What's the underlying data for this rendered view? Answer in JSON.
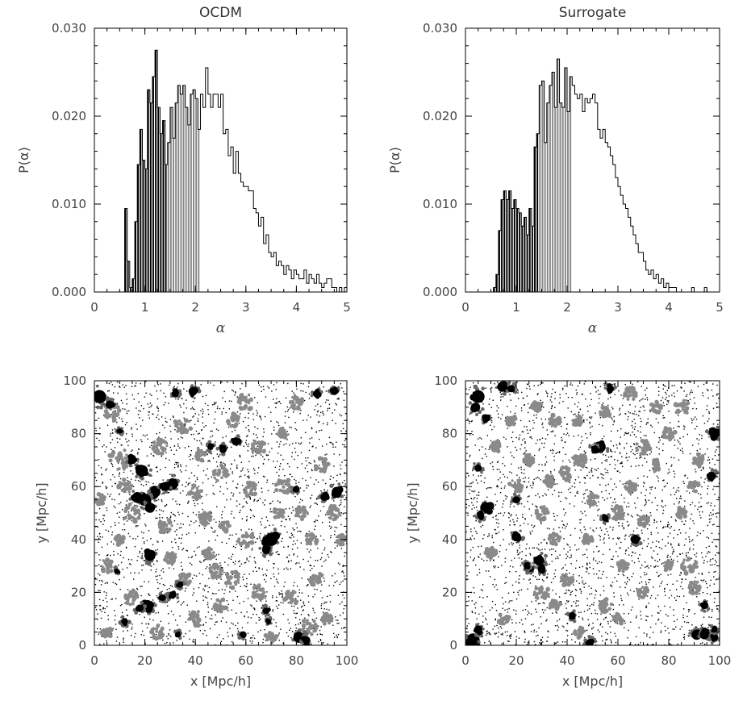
{
  "chart_data": [
    {
      "type": "bar",
      "title": "OCDM",
      "xlabel": "α",
      "ylabel": "P(α)",
      "xlim": [
        0,
        5
      ],
      "ylim": [
        0,
        0.03
      ],
      "xticks": [
        "0",
        "1",
        "2",
        "3",
        "4",
        "5"
      ],
      "yticks": [
        "0.000",
        "0.010",
        "0.020",
        "0.030"
      ],
      "bin_width": 0.05,
      "fill_ranges": [
        {
          "from": 0.55,
          "to": 1.45,
          "color": "#000000"
        },
        {
          "from": 1.45,
          "to": 2.1,
          "color": "#888888"
        }
      ],
      "x": [
        0.6,
        0.65,
        0.7,
        0.75,
        0.8,
        0.85,
        0.9,
        0.95,
        1.0,
        1.05,
        1.1,
        1.15,
        1.2,
        1.25,
        1.3,
        1.35,
        1.4,
        1.45,
        1.5,
        1.55,
        1.6,
        1.65,
        1.7,
        1.75,
        1.8,
        1.85,
        1.9,
        1.95,
        2.0,
        2.05,
        2.1,
        2.15,
        2.2,
        2.25,
        2.3,
        2.35,
        2.4,
        2.45,
        2.5,
        2.55,
        2.6,
        2.65,
        2.7,
        2.75,
        2.8,
        2.85,
        2.9,
        2.95,
        3.0,
        3.05,
        3.1,
        3.15,
        3.2,
        3.25,
        3.3,
        3.35,
        3.4,
        3.45,
        3.5,
        3.55,
        3.6,
        3.65,
        3.7,
        3.75,
        3.8,
        3.85,
        3.9,
        3.95,
        4.0,
        4.05,
        4.1,
        4.15,
        4.2,
        4.25,
        4.3,
        4.35,
        4.4,
        4.45,
        4.5,
        4.55,
        4.6,
        4.65,
        4.7,
        4.75,
        4.8,
        4.85,
        4.9,
        4.95
      ],
      "values": [
        0.0095,
        0.0035,
        0.0005,
        0.0015,
        0.008,
        0.0145,
        0.0185,
        0.015,
        0.014,
        0.023,
        0.0215,
        0.0245,
        0.0275,
        0.021,
        0.018,
        0.0195,
        0.0145,
        0.017,
        0.021,
        0.0175,
        0.0215,
        0.0235,
        0.0225,
        0.0235,
        0.021,
        0.019,
        0.0225,
        0.023,
        0.022,
        0.0185,
        0.0225,
        0.021,
        0.0255,
        0.0225,
        0.021,
        0.0225,
        0.0225,
        0.021,
        0.0225,
        0.018,
        0.0185,
        0.0155,
        0.0165,
        0.0135,
        0.016,
        0.0135,
        0.0125,
        0.012,
        0.012,
        0.0115,
        0.0115,
        0.0095,
        0.009,
        0.0075,
        0.0085,
        0.0055,
        0.0065,
        0.0045,
        0.004,
        0.0045,
        0.003,
        0.0035,
        0.003,
        0.002,
        0.003,
        0.0025,
        0.0015,
        0.0025,
        0.002,
        0.0015,
        0.0015,
        0.0025,
        0.001,
        0.002,
        0.0015,
        0.001,
        0.002,
        0.001,
        0.0005,
        0.001,
        0.0015,
        0.0015,
        0.0005,
        0.0005,
        0.0,
        0.0005,
        0.0,
        0.0005
      ]
    },
    {
      "type": "bar",
      "title": "Surrogate",
      "xlabel": "α",
      "ylabel": "P(α)",
      "xlim": [
        0,
        5
      ],
      "ylim": [
        0,
        0.03
      ],
      "xticks": [
        "0",
        "1",
        "2",
        "3",
        "4",
        "5"
      ],
      "yticks": [
        "0.000",
        "0.010",
        "0.020",
        "0.030"
      ],
      "bin_width": 0.05,
      "fill_ranges": [
        {
          "from": 0.55,
          "to": 1.45,
          "color": "#000000"
        },
        {
          "from": 1.45,
          "to": 2.1,
          "color": "#888888"
        }
      ],
      "x": [
        0.55,
        0.6,
        0.65,
        0.7,
        0.75,
        0.8,
        0.85,
        0.9,
        0.95,
        1.0,
        1.05,
        1.1,
        1.15,
        1.2,
        1.25,
        1.3,
        1.35,
        1.4,
        1.45,
        1.5,
        1.55,
        1.6,
        1.65,
        1.7,
        1.75,
        1.8,
        1.85,
        1.9,
        1.95,
        2.0,
        2.05,
        2.1,
        2.15,
        2.2,
        2.25,
        2.3,
        2.35,
        2.4,
        2.45,
        2.5,
        2.55,
        2.6,
        2.65,
        2.7,
        2.75,
        2.8,
        2.85,
        2.9,
        2.95,
        3.0,
        3.05,
        3.1,
        3.15,
        3.2,
        3.25,
        3.3,
        3.35,
        3.4,
        3.45,
        3.5,
        3.55,
        3.6,
        3.65,
        3.7,
        3.75,
        3.8,
        3.85,
        3.9,
        3.95,
        4.0,
        4.05,
        4.1,
        4.15,
        4.2,
        4.25,
        4.3,
        4.35,
        4.4,
        4.45,
        4.5,
        4.55,
        4.6,
        4.65,
        4.7,
        4.75,
        4.8,
        4.85,
        4.9
      ],
      "values": [
        0.0005,
        0.002,
        0.007,
        0.0105,
        0.0115,
        0.0105,
        0.0115,
        0.0095,
        0.0105,
        0.0095,
        0.009,
        0.0075,
        0.0085,
        0.0065,
        0.0095,
        0.0075,
        0.0165,
        0.018,
        0.0235,
        0.024,
        0.017,
        0.0215,
        0.0235,
        0.025,
        0.021,
        0.0265,
        0.0215,
        0.021,
        0.0255,
        0.0205,
        0.0245,
        0.0235,
        0.0225,
        0.022,
        0.0225,
        0.0205,
        0.022,
        0.0215,
        0.022,
        0.0225,
        0.0215,
        0.0185,
        0.0175,
        0.0185,
        0.017,
        0.0165,
        0.0155,
        0.0145,
        0.013,
        0.012,
        0.011,
        0.01,
        0.0095,
        0.0085,
        0.0075,
        0.0065,
        0.0055,
        0.0045,
        0.0045,
        0.0035,
        0.0025,
        0.002,
        0.0025,
        0.0015,
        0.002,
        0.001,
        0.0015,
        0.0005,
        0.001,
        0.0005,
        0.0005,
        0.0005,
        0.0,
        0.0,
        0.0,
        0.0,
        0.0,
        0.0,
        0.0005,
        0.0,
        0.0,
        0.0,
        0.0,
        0.0005,
        0.0,
        0.0,
        0.0,
        0.0
      ]
    },
    {
      "type": "scatter",
      "title": "",
      "xlabel": "x [Mpc/h]",
      "ylabel": "y [Mpc/h]",
      "xlim": [
        0,
        100
      ],
      "ylim": [
        0,
        100
      ],
      "xticks": [
        "0",
        "20",
        "40",
        "60",
        "80",
        "100"
      ],
      "yticks": [
        "0",
        "20",
        "40",
        "60",
        "80",
        "100"
      ],
      "background_points": 2200,
      "clumps_black": [
        [
          2,
          94,
          2.6
        ],
        [
          6,
          91,
          1.6
        ],
        [
          24,
          58,
          2.2
        ],
        [
          20,
          55,
          2.4
        ],
        [
          17,
          56,
          2
        ],
        [
          22,
          52,
          2
        ],
        [
          19,
          66,
          2.2
        ],
        [
          15,
          70,
          1.6
        ],
        [
          31,
          61,
          2.2
        ],
        [
          28,
          60,
          1.8
        ],
        [
          22,
          34,
          2.2
        ],
        [
          21,
          15,
          2.2
        ],
        [
          18,
          14,
          1.5
        ],
        [
          12,
          9,
          1.3
        ],
        [
          31,
          19,
          1.4
        ],
        [
          34,
          23,
          1.2
        ],
        [
          33,
          4,
          1.1
        ],
        [
          56,
          77,
          1.6
        ],
        [
          51,
          74,
          1.4
        ],
        [
          46,
          75,
          1.2
        ],
        [
          39,
          96,
          1.7
        ],
        [
          32,
          95,
          1.4
        ],
        [
          70,
          40,
          2.6
        ],
        [
          68,
          36,
          1.6
        ],
        [
          68,
          13,
          1.3
        ],
        [
          59,
          4,
          1.3
        ],
        [
          81,
          3,
          2.2
        ],
        [
          84,
          2,
          1.5
        ],
        [
          96,
          58,
          2
        ],
        [
          91,
          56,
          1.5
        ],
        [
          88,
          95,
          1.4
        ],
        [
          95,
          96,
          1.5
        ],
        [
          80,
          59,
          1.3
        ],
        [
          9,
          28,
          1
        ],
        [
          10,
          81,
          1
        ],
        [
          27,
          18,
          1.3
        ],
        [
          69,
          9,
          1
        ]
      ],
      "clumps_grey": [
        [
          10,
          70,
          3
        ],
        [
          7,
          88,
          2.2
        ],
        [
          15,
          50,
          2.5
        ],
        [
          26,
          75,
          2
        ],
        [
          35,
          83,
          2.5
        ],
        [
          40,
          58,
          2
        ],
        [
          44,
          48,
          1.8
        ],
        [
          50,
          65,
          2.2
        ],
        [
          55,
          85,
          1.8
        ],
        [
          60,
          92,
          2.2
        ],
        [
          65,
          75,
          2
        ],
        [
          75,
          80,
          1.6
        ],
        [
          80,
          92,
          2
        ],
        [
          90,
          68,
          2
        ],
        [
          95,
          50,
          2
        ],
        [
          98,
          40,
          1.5
        ],
        [
          86,
          40,
          1.8
        ],
        [
          75,
          60,
          2.3
        ],
        [
          60,
          40,
          2.2
        ],
        [
          55,
          25,
          2.3
        ],
        [
          45,
          35,
          1.8
        ],
        [
          36,
          25,
          1.8
        ],
        [
          28,
          45,
          2
        ],
        [
          5,
          30,
          1.8
        ],
        [
          10,
          40,
          1.5
        ],
        [
          15,
          18,
          2
        ],
        [
          40,
          10,
          2.2
        ],
        [
          50,
          15,
          1.8
        ],
        [
          65,
          20,
          2
        ],
        [
          78,
          18,
          2
        ],
        [
          88,
          25,
          1.8
        ],
        [
          92,
          10,
          1.5
        ],
        [
          25,
          5,
          1.8
        ],
        [
          5,
          5,
          1.5
        ],
        [
          73,
          50,
          1.6
        ],
        [
          42,
          72,
          1.6
        ],
        [
          62,
          59,
          2.2
        ],
        [
          48,
          28,
          1.8
        ],
        [
          30,
          33,
          1.6
        ],
        [
          85,
          7,
          2.2
        ],
        [
          70,
          3,
          1.6
        ],
        [
          2,
          55,
          1.5
        ],
        [
          12,
          60,
          2
        ],
        [
          52,
          45,
          1.6
        ],
        [
          82,
          50,
          1.8
        ]
      ]
    },
    {
      "type": "scatter",
      "title": "",
      "xlabel": "x [Mpc/h]",
      "ylabel": "y [Mpc/h]",
      "xlim": [
        0,
        100
      ],
      "ylim": [
        0,
        100
      ],
      "xticks": [
        "0",
        "20",
        "40",
        "60",
        "80",
        "100"
      ],
      "yticks": [
        "0",
        "20",
        "40",
        "60",
        "80",
        "100"
      ],
      "background_points": 2400,
      "clumps_black": [
        [
          5,
          94,
          2.5
        ],
        [
          4,
          90,
          1.8
        ],
        [
          8,
          86,
          1.4
        ],
        [
          15,
          98,
          2
        ],
        [
          18,
          97,
          1.4
        ],
        [
          8,
          52,
          2.2
        ],
        [
          6,
          49,
          1.4
        ],
        [
          5,
          67,
          1.4
        ],
        [
          20,
          55,
          1.4
        ],
        [
          20,
          41,
          1.8
        ],
        [
          25,
          29,
          1.4
        ],
        [
          24,
          30,
          1.2
        ],
        [
          29,
          32,
          2
        ],
        [
          30,
          29,
          1.5
        ],
        [
          53,
          75,
          2.2
        ],
        [
          51,
          74,
          1.5
        ],
        [
          55,
          48,
          1.3
        ],
        [
          57,
          97,
          1.4
        ],
        [
          67,
          40,
          1.6
        ],
        [
          42,
          11,
          1.4
        ],
        [
          49,
          1,
          1.5
        ],
        [
          3,
          2,
          2.6
        ],
        [
          5,
          6,
          1.6
        ],
        [
          2,
          1,
          2
        ],
        [
          91,
          4,
          2
        ],
        [
          94,
          4,
          1.8
        ],
        [
          98,
          3,
          1.5
        ],
        [
          98,
          80,
          2
        ],
        [
          97,
          64,
          1.6
        ],
        [
          94,
          15,
          1.4
        ],
        [
          98,
          6,
          1.2
        ]
      ],
      "clumps_grey": [
        [
          20,
          60,
          2
        ],
        [
          30,
          50,
          1.8
        ],
        [
          35,
          40,
          1.6
        ],
        [
          40,
          65,
          2
        ],
        [
          45,
          70,
          1.8
        ],
        [
          50,
          55,
          1.6
        ],
        [
          60,
          50,
          2
        ],
        [
          65,
          60,
          1.5
        ],
        [
          70,
          75,
          2
        ],
        [
          75,
          68,
          1.6
        ],
        [
          80,
          80,
          1.8
        ],
        [
          85,
          90,
          2.2
        ],
        [
          90,
          60,
          1.5
        ],
        [
          92,
          70,
          1.8
        ],
        [
          30,
          20,
          2
        ],
        [
          35,
          15,
          1.6
        ],
        [
          40,
          25,
          1.8
        ],
        [
          45,
          5,
          1.6
        ],
        [
          55,
          15,
          1.8
        ],
        [
          60,
          10,
          1.5
        ],
        [
          70,
          20,
          1.6
        ],
        [
          80,
          30,
          1.6
        ],
        [
          88,
          30,
          2.2
        ],
        [
          90,
          22,
          1.8
        ],
        [
          15,
          10,
          1.6
        ],
        [
          10,
          35,
          1.5
        ],
        [
          25,
          70,
          1.6
        ],
        [
          35,
          85,
          1.6
        ],
        [
          55,
          88,
          1.5
        ],
        [
          65,
          95,
          1.8
        ],
        [
          75,
          90,
          1.5
        ],
        [
          12,
          75,
          1.5
        ],
        [
          62,
          30,
          1.6
        ],
        [
          48,
          40,
          1.5
        ],
        [
          70,
          47,
          1.5
        ],
        [
          85,
          50,
          1.5
        ],
        [
          18,
          85,
          1.5
        ],
        [
          28,
          90,
          1.4
        ],
        [
          44,
          85,
          1.4
        ],
        [
          33,
          62,
          1.5
        ]
      ]
    }
  ]
}
